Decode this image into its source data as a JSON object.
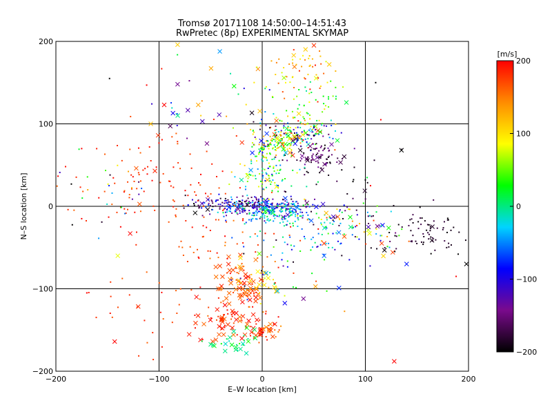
{
  "chart_data": {
    "type": "scatter",
    "title_line1": "Tromsø 20171108 14:50:00–14:51:43",
    "title_line2": "RwPretec (8p) EXPERIMENTAL SKYMAP",
    "xlabel": "E–W location [km]",
    "ylabel": "N–S location [km]",
    "xlim": [
      -200,
      200
    ],
    "ylim": [
      -200,
      200
    ],
    "xticks": [
      -200,
      -100,
      0,
      100,
      200
    ],
    "yticks": [
      -200,
      -100,
      0,
      100,
      200
    ],
    "xtick_labels": [
      "−200",
      "−100",
      "0",
      "100",
      "200"
    ],
    "ytick_labels": [
      "−200",
      "−100",
      "0",
      "100",
      "200"
    ],
    "grid_lines": [
      -100,
      0,
      100
    ],
    "grid": true,
    "colorbar": {
      "label": "[m/s]",
      "range": [
        -200,
        200
      ],
      "ticks": [
        200,
        100,
        0,
        -100,
        -200
      ],
      "tick_labels": [
        "200",
        "100",
        "0",
        "−100",
        "−200"
      ],
      "colormap": [
        "#000000",
        "#7a0a8c",
        "#0000ff",
        "#00d4ff",
        "#00ff00",
        "#ffff00",
        "#ff8c00",
        "#ff0000"
      ]
    },
    "markers": {
      "dot": "velocity measurement",
      "cross": "velocity measurement (x)"
    },
    "clusters": [
      {
        "x": -28,
        "y": 2,
        "sx": 22,
        "sy": 5,
        "n": 140,
        "vmin": -200,
        "vmax": -60,
        "cross": 0.05
      },
      {
        "x": 10,
        "y": -2,
        "sx": 20,
        "sy": 6,
        "n": 160,
        "vmin": -160,
        "vmax": -20,
        "cross": 0.06
      },
      {
        "x": 8,
        "y": -8,
        "sx": 22,
        "sy": 7,
        "n": 110,
        "vmin": -70,
        "vmax": 30,
        "cross": 0.06
      },
      {
        "x": 30,
        "y": 88,
        "sx": 20,
        "sy": 9,
        "n": 170,
        "vmin": -200,
        "vmax": 200,
        "cross": 0.12
      },
      {
        "x": 10,
        "y": 74,
        "sx": 10,
        "sy": 7,
        "n": 70,
        "vmin": 10,
        "vmax": 150,
        "cross": 0.08
      },
      {
        "x": 58,
        "y": 58,
        "sx": 12,
        "sy": 10,
        "n": 80,
        "vmin": -200,
        "vmax": -130,
        "cross": 0.1
      },
      {
        "x": 35,
        "y": 165,
        "sx": 18,
        "sy": 16,
        "n": 60,
        "vmin": 70,
        "vmax": 200,
        "cross": 0.2
      },
      {
        "x": 5,
        "y": 40,
        "sx": 14,
        "sy": 22,
        "n": 120,
        "vmin": -90,
        "vmax": 120,
        "cross": 0.05
      },
      {
        "x": 45,
        "y": 125,
        "sx": 14,
        "sy": 14,
        "n": 50,
        "vmin": -20,
        "vmax": 110,
        "cross": 0.1
      },
      {
        "x": -105,
        "y": 25,
        "sx": 40,
        "sy": 30,
        "n": 110,
        "vmin": 160,
        "vmax": 200,
        "cross": 0.02
      },
      {
        "x": -20,
        "y": -95,
        "sx": 14,
        "sy": 16,
        "n": 80,
        "vmin": 150,
        "vmax": 200,
        "cross": 0.55
      },
      {
        "x": -30,
        "y": -140,
        "sx": 16,
        "sy": 14,
        "n": 70,
        "vmin": 150,
        "vmax": 200,
        "cross": 0.5
      },
      {
        "x": 5,
        "y": -148,
        "sx": 8,
        "sy": 8,
        "n": 35,
        "vmin": 140,
        "vmax": 200,
        "cross": 0.5
      },
      {
        "x": -5,
        "y": -95,
        "sx": 12,
        "sy": 10,
        "n": 25,
        "vmin": 90,
        "vmax": 140,
        "cross": 0.5
      },
      {
        "x": -25,
        "y": -165,
        "sx": 14,
        "sy": 10,
        "n": 28,
        "vmin": -20,
        "vmax": 40,
        "cross": 0.5
      },
      {
        "x": -45,
        "y": -40,
        "sx": 30,
        "sy": 22,
        "n": 45,
        "vmin": 150,
        "vmax": 200,
        "cross": 0.05
      },
      {
        "x": 160,
        "y": -35,
        "sx": 15,
        "sy": 10,
        "n": 60,
        "vmin": -200,
        "vmax": -170,
        "cross": 0.08
      },
      {
        "x": 115,
        "y": -35,
        "sx": 15,
        "sy": 10,
        "n": 30,
        "vmin": -200,
        "vmax": 180,
        "cross": 0.3
      },
      {
        "x": 80,
        "y": -18,
        "sx": 18,
        "sy": 16,
        "n": 55,
        "vmin": -200,
        "vmax": 200,
        "cross": 0.12
      },
      {
        "x": 45,
        "y": -35,
        "sx": 25,
        "sy": 18,
        "n": 60,
        "vmin": -120,
        "vmax": 60,
        "cross": 0.08
      },
      {
        "x": 20,
        "y": -85,
        "sx": 25,
        "sy": 25,
        "n": 45,
        "vmin": -200,
        "vmax": 200,
        "cross": 0.15
      },
      {
        "x": -110,
        "y": -120,
        "sx": 30,
        "sy": 30,
        "n": 30,
        "vmin": 160,
        "vmax": 200,
        "cross": 0.15
      },
      {
        "x": -40,
        "y": 130,
        "sx": 35,
        "sy": 30,
        "n": 35,
        "vmin": -200,
        "vmax": 200,
        "cross": 0.35
      },
      {
        "x": 70,
        "y": 10,
        "sx": 45,
        "sy": 35,
        "n": 40,
        "vmin": -200,
        "vmax": -150,
        "cross": 0.05
      },
      {
        "x": -150,
        "y": 20,
        "sx": 25,
        "sy": 20,
        "n": 25,
        "vmin": -200,
        "vmax": 200,
        "cross": 0.05
      }
    ],
    "points": [
      {
        "x": -148,
        "y": 155,
        "v": -200,
        "m": "dot"
      },
      {
        "x": -82,
        "y": 196,
        "v": 110,
        "m": "cross"
      },
      {
        "x": -82,
        "y": 148,
        "v": -140,
        "m": "cross"
      },
      {
        "x": -95,
        "y": 123,
        "v": 200,
        "m": "cross"
      },
      {
        "x": -62,
        "y": 123,
        "v": 130,
        "m": "cross"
      },
      {
        "x": -58,
        "y": 103,
        "v": -120,
        "m": "cross"
      },
      {
        "x": -108,
        "y": 100,
        "v": 120,
        "m": "cross"
      },
      {
        "x": -185,
        "y": 27,
        "v": -200,
        "m": "dot"
      },
      {
        "x": -140,
        "y": -60,
        "v": 80,
        "m": "cross"
      },
      {
        "x": -128,
        "y": -33,
        "v": 200,
        "m": "cross"
      },
      {
        "x": -143,
        "y": -164,
        "v": 200,
        "m": "cross"
      },
      {
        "x": -65,
        "y": -8,
        "v": -200,
        "m": "cross"
      },
      {
        "x": 128,
        "y": -188,
        "v": 200,
        "m": "cross"
      },
      {
        "x": 135,
        "y": 68,
        "v": -200,
        "m": "cross"
      },
      {
        "x": 190,
        "y": -58,
        "v": -200,
        "m": "dot"
      },
      {
        "x": 198,
        "y": -70,
        "v": -200,
        "m": "cross"
      },
      {
        "x": 188,
        "y": -85,
        "v": 200,
        "m": "dot"
      },
      {
        "x": 110,
        "y": 150,
        "v": -200,
        "m": "dot"
      },
      {
        "x": 115,
        "y": 105,
        "v": 200,
        "m": "dot"
      },
      {
        "x": 88,
        "y": 30,
        "v": -200,
        "m": "dot"
      },
      {
        "x": 105,
        "y": 25,
        "v": 200,
        "m": "dot"
      },
      {
        "x": 100,
        "y": 32,
        "v": -200,
        "m": "dot"
      },
      {
        "x": 140,
        "y": -70,
        "v": -80,
        "m": "cross"
      },
      {
        "x": 60,
        "y": -45,
        "v": 180,
        "m": "cross"
      },
      {
        "x": 60,
        "y": -60,
        "v": -60,
        "m": "cross"
      },
      {
        "x": 40,
        "y": -112,
        "v": -140,
        "m": "cross"
      },
      {
        "x": -175,
        "y": 70,
        "v": 200,
        "m": "dot"
      },
      {
        "x": -112,
        "y": 147,
        "v": 200,
        "m": "dot"
      },
      {
        "x": -170,
        "y": -105,
        "v": 200,
        "m": "dot"
      },
      {
        "x": -175,
        "y": -15,
        "v": 200,
        "m": "dot"
      }
    ]
  }
}
